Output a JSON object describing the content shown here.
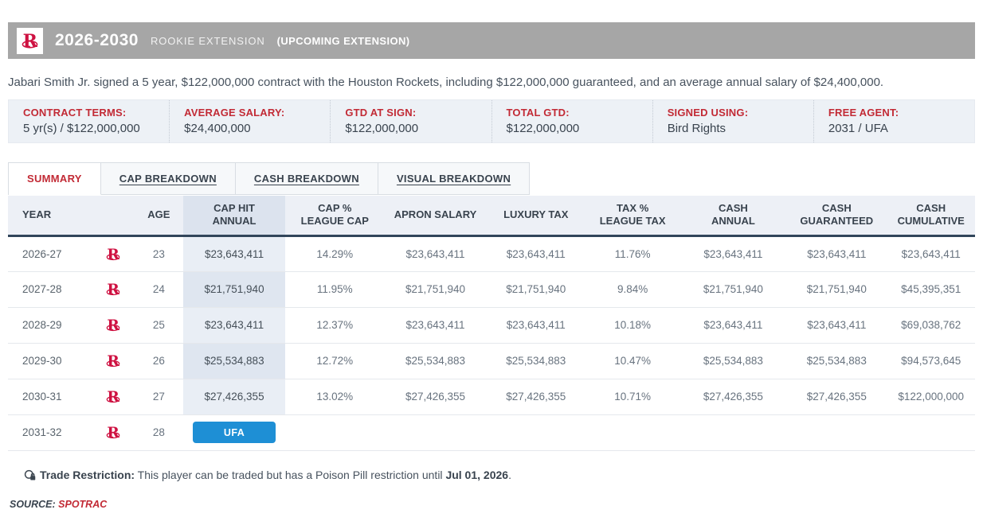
{
  "header": {
    "title": "2026-2030",
    "contract_type": "ROOKIE EXTENSION",
    "status_tag": "(UPCOMING EXTENSION)",
    "team_logo": "houston-rockets-logo"
  },
  "summary_text": "Jabari Smith Jr. signed a 5 year, $122,000,000 contract with the Houston Rockets, including $122,000,000 guaranteed, and an average annual salary of $24,400,000.",
  "terms": [
    {
      "label": "CONTRACT TERMS:",
      "value": "5 yr(s) / $122,000,000"
    },
    {
      "label": "AVERAGE SALARY:",
      "value": "$24,400,000"
    },
    {
      "label": "GTD AT SIGN:",
      "value": "$122,000,000"
    },
    {
      "label": "TOTAL GTD:",
      "value": "$122,000,000"
    },
    {
      "label": "SIGNED USING:",
      "value": "Bird Rights"
    },
    {
      "label": "FREE AGENT:",
      "value": "2031 / UFA"
    }
  ],
  "tabs": [
    {
      "label": "SUMMARY",
      "active": true
    },
    {
      "label": "CAP BREAKDOWN",
      "active": false
    },
    {
      "label": "CASH BREAKDOWN",
      "active": false
    },
    {
      "label": "VISUAL BREAKDOWN",
      "active": false
    }
  ],
  "table": {
    "columns": [
      {
        "key": "year",
        "label": "YEAR"
      },
      {
        "key": "logo",
        "label": ""
      },
      {
        "key": "age",
        "label": "AGE"
      },
      {
        "key": "cap_hit",
        "label": "CAP HIT\nANNUAL",
        "highlight": true
      },
      {
        "key": "cap_pct",
        "label": "CAP %\nLEAGUE CAP"
      },
      {
        "key": "apron",
        "label": "APRON SALARY"
      },
      {
        "key": "luxury",
        "label": "LUXURY TAX"
      },
      {
        "key": "tax_pct",
        "label": "TAX %\nLEAGUE TAX"
      },
      {
        "key": "cash_annual",
        "label": "CASH\nANNUAL"
      },
      {
        "key": "cash_gtd",
        "label": "CASH\nGUARANTEED"
      },
      {
        "key": "cash_cum",
        "label": "CASH\nCUMULATIVE"
      }
    ],
    "rows": [
      {
        "year": "2026-27",
        "age": "23",
        "cap_hit": "$23,643,411",
        "cap_pct": "14.29%",
        "apron": "$23,643,411",
        "luxury": "$23,643,411",
        "tax_pct": "11.76%",
        "cash_annual": "$23,643,411",
        "cash_gtd": "$23,643,411",
        "cash_cum": "$23,643,411",
        "ufa": false
      },
      {
        "year": "2027-28",
        "age": "24",
        "cap_hit": "$21,751,940",
        "cap_pct": "11.95%",
        "apron": "$21,751,940",
        "luxury": "$21,751,940",
        "tax_pct": "9.84%",
        "cash_annual": "$21,751,940",
        "cash_gtd": "$21,751,940",
        "cash_cum": "$45,395,351",
        "ufa": false
      },
      {
        "year": "2028-29",
        "age": "25",
        "cap_hit": "$23,643,411",
        "cap_pct": "12.37%",
        "apron": "$23,643,411",
        "luxury": "$23,643,411",
        "tax_pct": "10.18%",
        "cash_annual": "$23,643,411",
        "cash_gtd": "$23,643,411",
        "cash_cum": "$69,038,762",
        "ufa": false
      },
      {
        "year": "2029-30",
        "age": "26",
        "cap_hit": "$25,534,883",
        "cap_pct": "12.72%",
        "apron": "$25,534,883",
        "luxury": "$25,534,883",
        "tax_pct": "10.47%",
        "cash_annual": "$25,534,883",
        "cash_gtd": "$25,534,883",
        "cash_cum": "$94,573,645",
        "ufa": false
      },
      {
        "year": "2030-31",
        "age": "27",
        "cap_hit": "$27,426,355",
        "cap_pct": "13.02%",
        "apron": "$27,426,355",
        "luxury": "$27,426,355",
        "tax_pct": "10.71%",
        "cash_annual": "$27,426,355",
        "cash_gtd": "$27,426,355",
        "cash_cum": "$122,000,000",
        "ufa": false
      },
      {
        "year": "2031-32",
        "age": "28",
        "cap_hit": "UFA",
        "cap_pct": "",
        "apron": "",
        "luxury": "",
        "tax_pct": "",
        "cash_annual": "",
        "cash_gtd": "",
        "cash_cum": "",
        "ufa": true
      }
    ]
  },
  "trade_note": {
    "icon": "trade-restriction-lock-icon",
    "label": "Trade Restriction:",
    "text": " This player can be traded but has a Poison Pill restriction until ",
    "date": "Jul 01, 2026",
    "suffix": "."
  },
  "source": {
    "label": "SOURCE:",
    "value": "SPOTRAC"
  },
  "colors": {
    "accent_red": "#c22a35",
    "team_red": "#ce1141",
    "bar_gray": "#a6a6a6",
    "ufa_blue": "#1e8fd5",
    "header_border_dark": "#31455a",
    "terms_bg": "#edf1f6",
    "cap_column_tint": "#e9eef5"
  }
}
